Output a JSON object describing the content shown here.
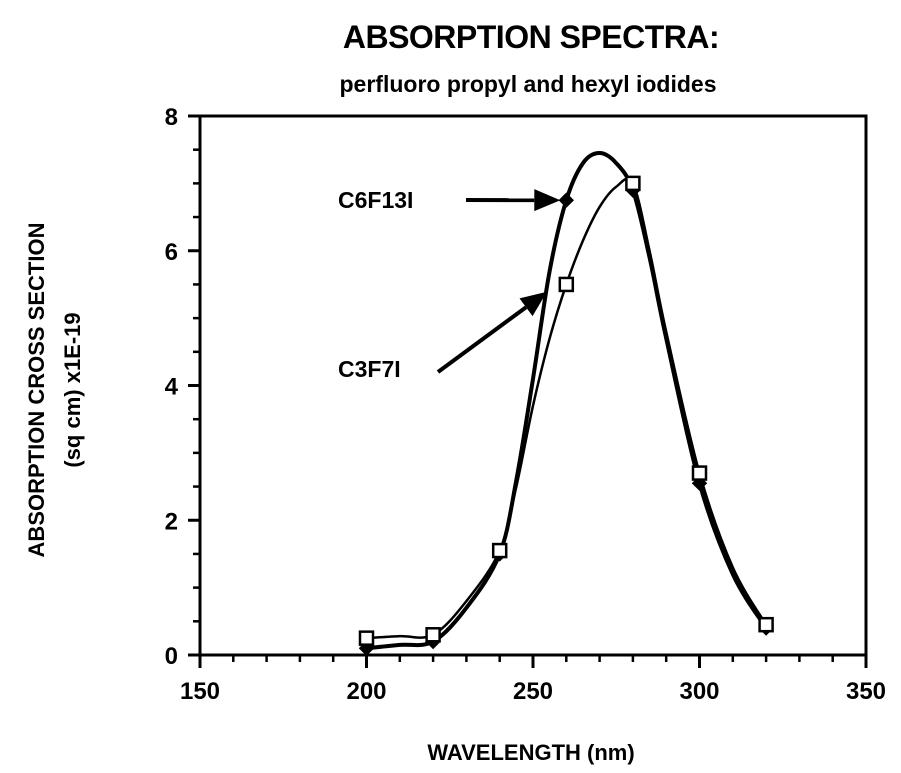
{
  "chart_data": {
    "type": "line",
    "title": "ABSORPTION SPECTRA:",
    "subtitle": "perfluoro propyl and hexyl iodides",
    "xlabel": "WAVELENGTH (nm)",
    "ylabel_line1": "ABSORPTION CROSS SECTION",
    "ylabel_line2": "(sq cm) x1E-19",
    "xlim": [
      150,
      350
    ],
    "ylim": [
      0,
      8
    ],
    "x_ticks": [
      "150",
      "200",
      "250",
      "300",
      "350"
    ],
    "y_ticks": [
      "0",
      "2",
      "4",
      "6",
      "8"
    ],
    "grid": false,
    "series": [
      {
        "name": "C6F13I",
        "marker": "diamond",
        "x": [
          200,
          220,
          240,
          260,
          280,
          300,
          320
        ],
        "y": [
          0.1,
          0.2,
          1.5,
          6.75,
          6.9,
          2.55,
          0.4
        ],
        "curve_x": [
          200,
          210,
          220,
          230,
          240,
          245,
          250,
          255,
          260,
          265,
          270,
          275,
          280,
          285,
          290,
          300,
          310,
          320
        ],
        "curve_y": [
          0.1,
          0.15,
          0.2,
          0.7,
          1.5,
          2.6,
          4.1,
          5.7,
          6.75,
          7.3,
          7.45,
          7.3,
          6.9,
          5.9,
          4.7,
          2.55,
          1.2,
          0.4
        ]
      },
      {
        "name": "C3F7I",
        "marker": "square",
        "x": [
          200,
          220,
          240,
          260,
          280,
          300,
          320
        ],
        "y": [
          0.25,
          0.3,
          1.55,
          5.5,
          7.0,
          2.7,
          0.45
        ],
        "curve_x": [
          200,
          210,
          220,
          230,
          240,
          245,
          250,
          255,
          260,
          265,
          270,
          275,
          280,
          285,
          290,
          300,
          310,
          320
        ],
        "curve_y": [
          0.25,
          0.28,
          0.3,
          0.8,
          1.55,
          2.5,
          3.7,
          4.7,
          5.5,
          6.15,
          6.65,
          6.95,
          7.0,
          6.0,
          4.8,
          2.7,
          1.3,
          0.45
        ]
      }
    ],
    "annotations": [
      {
        "text": "C6F13I",
        "points_to_series": "C6F13I",
        "target": [
          260,
          6.75
        ]
      },
      {
        "text": "C3F7I",
        "points_to_series": "C3F7I",
        "target": [
          256,
          5.45
        ]
      }
    ]
  }
}
